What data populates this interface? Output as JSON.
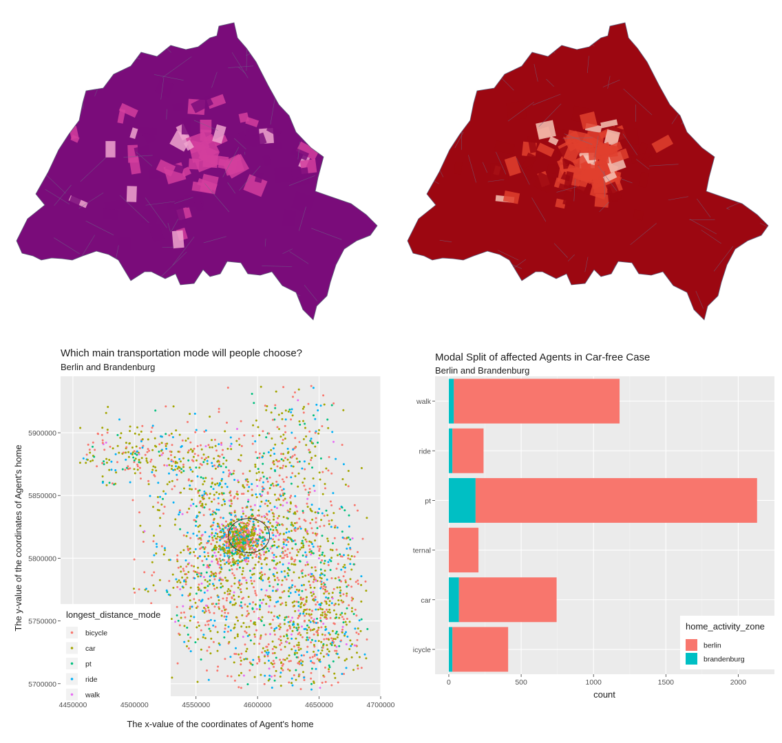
{
  "maps": [
    {
      "name": "choropleth-left",
      "fill": "#7a0c7a",
      "accent": "#d43e9e",
      "highlight": "#f0a6cf"
    },
    {
      "name": "choropleth-right",
      "fill": "#9c0711",
      "accent": "#e0402e",
      "highlight": "#f6c3b5"
    }
  ],
  "chart_data": [
    {
      "type": "scatter",
      "title": "Which main transportation mode will people choose?",
      "subtitle": "Berlin and Brandenburg",
      "xlabel": "The x-value of the coordinates of Agent's home",
      "ylabel": "The y-value of the coordinates of Agent's home",
      "xlim": [
        4440000,
        4700000
      ],
      "ylim": [
        5690000,
        5945000
      ],
      "x_ticks": [
        4450000,
        4500000,
        4550000,
        4600000,
        4650000,
        4700000
      ],
      "x_tick_labels": [
        "4450000",
        "4500000",
        "4550000",
        "4600000",
        "4650000",
        "4700000"
      ],
      "y_ticks": [
        5700000,
        5750000,
        5800000,
        5850000,
        5900000
      ],
      "y_tick_labels": [
        "5700000",
        "5750000",
        "5800000",
        "5850000",
        "5900000"
      ],
      "legend_title": "longest_distance_mode",
      "legend_placement": "bottom-left",
      "grid": true,
      "series": [
        {
          "name": "bicycle",
          "color": "#F8766D"
        },
        {
          "name": "car",
          "color": "#A3A500"
        },
        {
          "name": "pt",
          "color": "#00BF7D"
        },
        {
          "name": "ride",
          "color": "#00B0F6"
        },
        {
          "name": "walk",
          "color": "#E76BF3"
        }
      ]
    },
    {
      "type": "bar",
      "orientation": "horizontal",
      "stacked": true,
      "title": "Modal Split of affected Agents in Car-free Case",
      "subtitle": "Berlin and Brandenburg",
      "xlabel": "count",
      "ylabel": "",
      "xlim": [
        0,
        2250
      ],
      "x_ticks": [
        0,
        500,
        1000,
        1500,
        2000
      ],
      "x_tick_labels": [
        "0",
        "500",
        "1000",
        "1500",
        "2000"
      ],
      "categories": [
        "bicycle",
        "car",
        "carInternal",
        "pt",
        "ride",
        "walk"
      ],
      "legend_title": "home_activity_zone",
      "legend_placement": "bottom-right",
      "grid": true,
      "series": [
        {
          "name": "brandenburg",
          "color": "#00BFC4",
          "values": [
            25,
            70,
            0,
            185,
            25,
            35
          ]
        },
        {
          "name": "berlin",
          "color": "#F8766D",
          "values": [
            385,
            675,
            205,
            1945,
            215,
            1145
          ]
        }
      ]
    }
  ]
}
